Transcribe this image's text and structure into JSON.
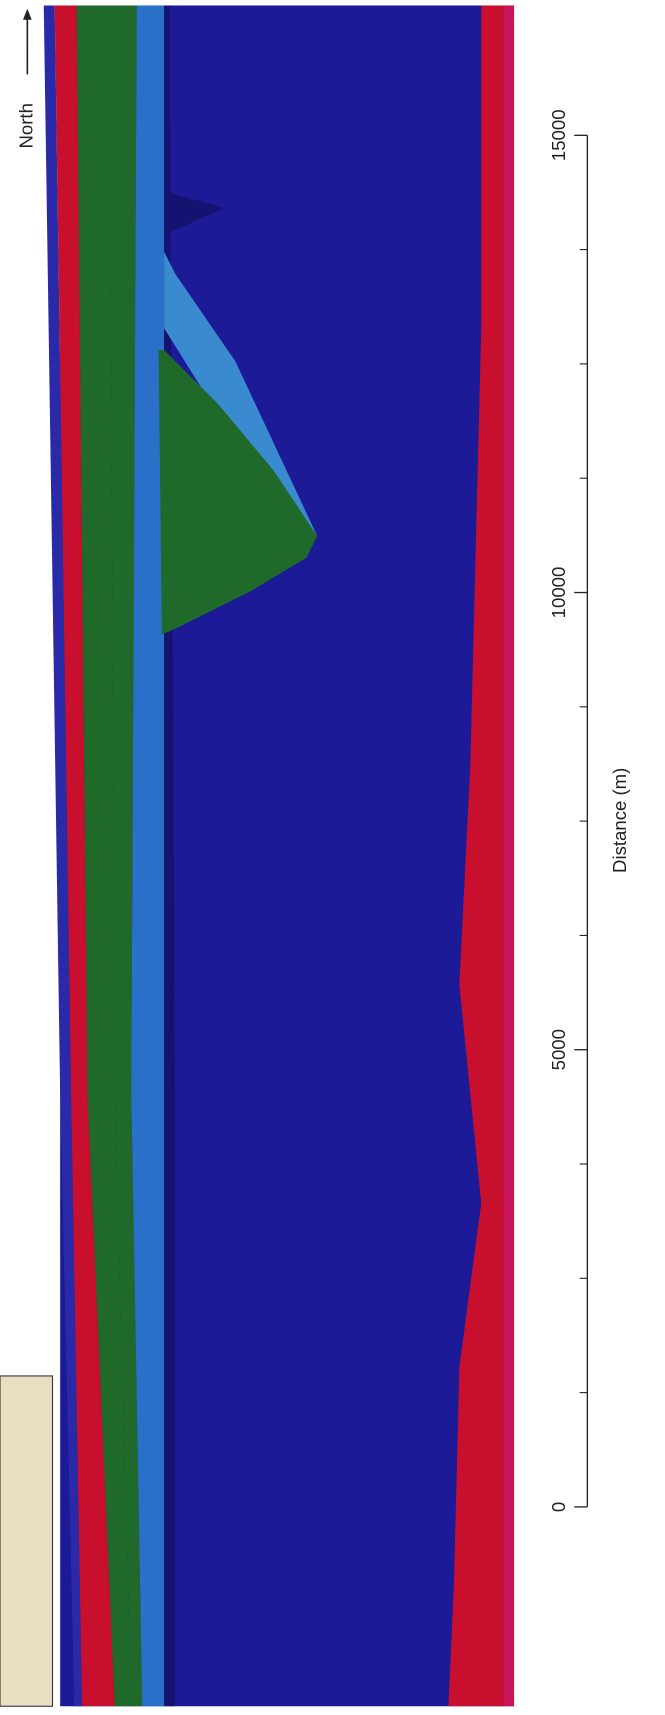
{
  "chart_data": {
    "type": "section",
    "annotation": "North",
    "xlabel": "Distance (m)",
    "xlim": [
      -2180,
      16420
    ],
    "xticks": [
      0,
      5000,
      10000,
      15000
    ],
    "xminorticks": [
      1250,
      2500,
      3750,
      6250,
      7500,
      8750,
      11250,
      12500,
      13750
    ]
  }
}
